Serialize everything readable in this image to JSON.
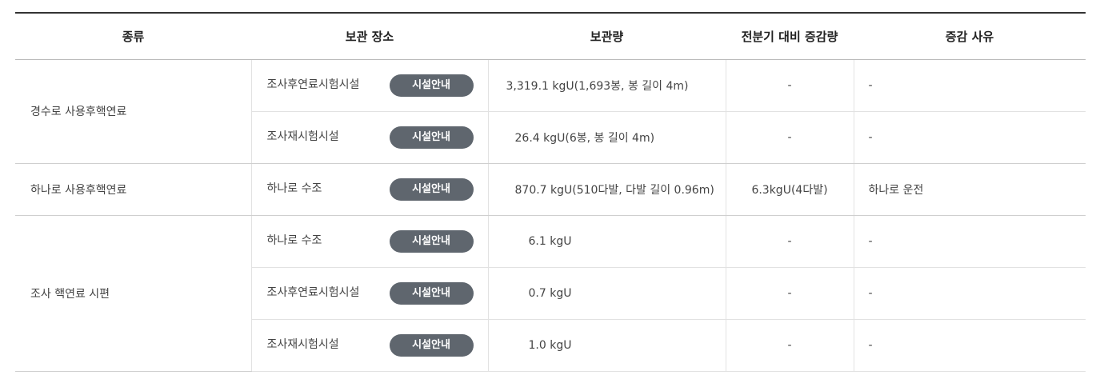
{
  "headers": {
    "type": "종류",
    "location": "보관 장소",
    "amount": "보관량",
    "change": "전분기 대비 증감량",
    "reason": "증감 사유"
  },
  "button_label": "시설안내",
  "groups": [
    {
      "type": "경수로 사용후핵연료",
      "rows": [
        {
          "location": "조사후연료시험시설",
          "amount": "3,319.1 kgU(1,693봉, 봉 길이 4m)",
          "change": "-",
          "reason": "-"
        },
        {
          "location": "조사재시험시설",
          "amount": "26.4 kgU(6봉, 봉 길이 4m)",
          "change": "-",
          "reason": "-"
        }
      ]
    },
    {
      "type": "하나로 사용후핵연료",
      "rows": [
        {
          "location": "하나로 수조",
          "amount": "870.7 kgU(510다발, 다발 길이 0.96m)",
          "change": "6.3kgU(4다발)",
          "reason": "하나로 운전"
        }
      ]
    },
    {
      "type": "조사 핵연료 시편",
      "rows": [
        {
          "location": "하나로 수조",
          "amount": "6.1 kgU",
          "change": "-",
          "reason": "-"
        },
        {
          "location": "조사후연료시험시설",
          "amount": "0.7 kgU",
          "change": "-",
          "reason": "-"
        },
        {
          "location": "조사재시험시설",
          "amount": "1.0 kgU",
          "change": "-",
          "reason": "-"
        }
      ]
    }
  ]
}
